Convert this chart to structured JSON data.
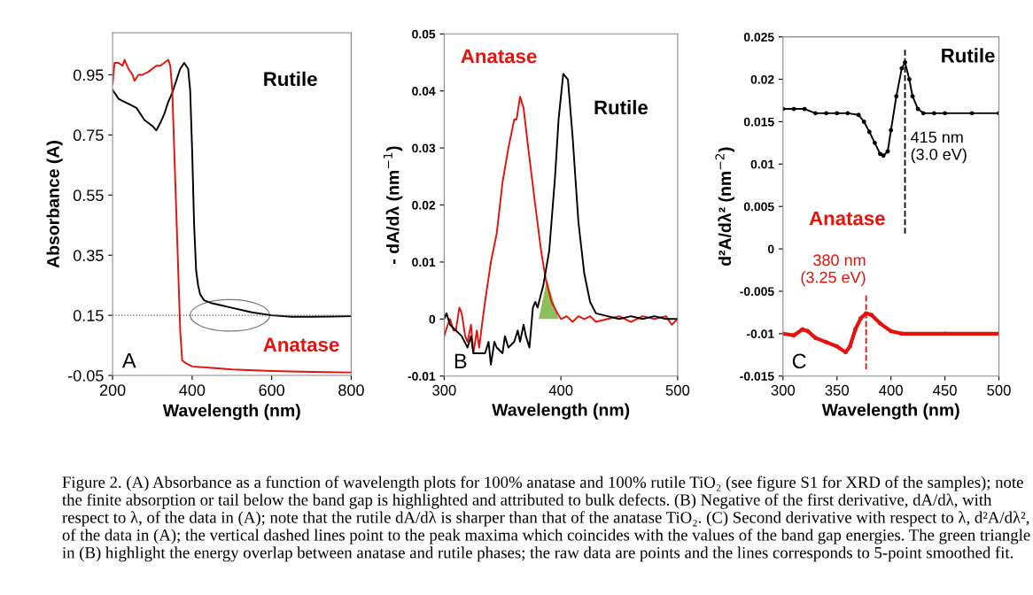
{
  "chart_data": [
    {
      "type": "line",
      "xlabel": "Wavelength (nm)",
      "ylabel": "Absorbance (A)",
      "xlim": [
        200,
        800
      ],
      "xticks": [
        200,
        400,
        600,
        800
      ],
      "ylim": [
        -0.05,
        1.09
      ],
      "yticks": [
        -0.05,
        0.15,
        0.35,
        0.55,
        0.75,
        0.95
      ],
      "grid": false,
      "legend": false,
      "series": [
        {
          "name": "Rutile",
          "color": "#000000",
          "x": [
            200,
            215,
            230,
            245,
            260,
            280,
            300,
            310,
            320,
            330,
            340,
            350,
            360,
            370,
            380,
            390,
            395,
            400,
            405,
            410,
            415,
            420,
            430,
            450,
            500,
            550,
            600,
            650,
            700,
            750,
            800
          ],
          "values": [
            0.9,
            0.87,
            0.86,
            0.85,
            0.84,
            0.8,
            0.78,
            0.765,
            0.79,
            0.82,
            0.86,
            0.89,
            0.93,
            0.97,
            0.99,
            0.97,
            0.9,
            0.7,
            0.45,
            0.3,
            0.25,
            0.22,
            0.2,
            0.19,
            0.175,
            0.16,
            0.15,
            0.145,
            0.145,
            0.146,
            0.147
          ]
        },
        {
          "name": "Anatase",
          "color": "#e8120c",
          "x": [
            200,
            205,
            215,
            225,
            230,
            240,
            250,
            255,
            265,
            275,
            290,
            310,
            320,
            330,
            340,
            345,
            350,
            355,
            360,
            365,
            370,
            375,
            380,
            385,
            400,
            450,
            500,
            600,
            700,
            800
          ],
          "values": [
            0.92,
            0.99,
            0.99,
            0.98,
            1.0,
            0.97,
            0.95,
            0.93,
            0.95,
            0.95,
            0.96,
            0.98,
            0.98,
            0.99,
            1.0,
            0.98,
            0.9,
            0.7,
            0.5,
            0.3,
            0.1,
            0.0,
            -0.005,
            -0.01,
            -0.02,
            -0.025,
            -0.03,
            -0.035,
            -0.038,
            -0.04
          ]
        }
      ],
      "ref_lines": [
        {
          "axis": "y",
          "value": 0.15,
          "color": "#555555",
          "line_style": "dotted"
        }
      ],
      "annotations": [
        "A",
        "Figure 2. (A) Absorbance as a function of wavelength plots for 100% anatase and 100% rutile TiO₂ (see figure S1 for XRD of the samples); note the finite absorption or tail below the band gap is highlighted and attributed to bulk defects. (B) Negative of the first derivative, dA/dλ, with respect to λ, of the data in (A); note that the rutile dA/dλ is sharper than that of the anatase TiO₂. (C) Second derivative with respect to λ, d²A/dλ², of the data in (A); the vertical dashed lines point to the peak maxima which coincides with the values of the band gap energies. The green triangle in (B) highlight the energy overlap between anatase and rutile phases; the raw data are points and the lines corresponds to 5-point smoothed fit."
      ]
    },
    {
      "type": "line",
      "xlabel": "Wavelength (nm)",
      "ylabel": "- dA/dλ (nm$^{−1}$)",
      "xlim": [
        300,
        500
      ],
      "xticks": [
        300,
        400,
        500
      ],
      "ylim": [
        -0.01,
        0.05
      ],
      "yticks": [
        -0.01,
        0,
        0.01,
        0.02,
        0.03,
        0.04,
        0.05
      ],
      "grid": false,
      "legend": false,
      "series": [
        {
          "name": "Anatase",
          "color": "#e8120c",
          "x": [
            300,
            303,
            305,
            308,
            310,
            313,
            315,
            318,
            320,
            323,
            325,
            328,
            330,
            333,
            335,
            340,
            345,
            350,
            355,
            360,
            362,
            365,
            368,
            372,
            378,
            383,
            387,
            392,
            397,
            400,
            405,
            410,
            415,
            420,
            425,
            430,
            440,
            450,
            460,
            470,
            480,
            490,
            495,
            500
          ],
          "values": [
            -0.003,
            -0.001,
            0.0,
            -0.002,
            -0.002,
            0.002,
            0.001,
            -0.003,
            -0.004,
            -0.001,
            -0.006,
            -0.002,
            -0.005,
            0.0,
            0.003,
            0.01,
            0.015,
            0.024,
            0.03,
            0.035,
            0.035,
            0.039,
            0.037,
            0.03,
            0.02,
            0.012,
            0.007,
            0.003,
            0.001,
            0.0,
            0.0005,
            -0.0005,
            0.0005,
            0.0,
            0.0005,
            -0.0005,
            0.0,
            0.0005,
            -0.0005,
            0.0005,
            0.0,
            0.0005,
            -0.001,
            0.0
          ]
        },
        {
          "name": "Rutile",
          "color": "#000000",
          "x": [
            300,
            302,
            305,
            310,
            315,
            320,
            323,
            325,
            330,
            335,
            338,
            340,
            343,
            345,
            350,
            352,
            355,
            360,
            363,
            365,
            368,
            370,
            373,
            376,
            378,
            380,
            385,
            390,
            395,
            398,
            402,
            406,
            410,
            415,
            420,
            425,
            430,
            440,
            450,
            460,
            470,
            480,
            490,
            500
          ],
          "values": [
            0.0,
            0.001,
            -0.001,
            -0.002,
            -0.003,
            -0.005,
            -0.003,
            -0.006,
            -0.006,
            -0.006,
            -0.004,
            -0.008,
            -0.004,
            -0.005,
            -0.006,
            -0.003,
            -0.005,
            -0.004,
            -0.002,
            -0.004,
            -0.001,
            -0.003,
            -0.005,
            0.002,
            0.003,
            0.002,
            0.006,
            0.012,
            0.025,
            0.035,
            0.043,
            0.042,
            0.032,
            0.017,
            0.008,
            0.003,
            0.001,
            0.0005,
            0.0,
            0.0005,
            0.0,
            0.0005,
            0.0,
            0.0
          ]
        },
        {
          "type": "area",
          "color": "#8dbf5a",
          "x": [
            381,
            388,
            398
          ],
          "values": [
            0,
            0.007,
            0
          ]
        }
      ],
      "annotations": [
        "B"
      ]
    },
    {
      "type": "line",
      "xlabel": "Wavelength (nm)",
      "ylabel": "d²A/dλ² (nm$^{−2}$)",
      "xlim": [
        300,
        500
      ],
      "xticks": [
        300,
        350,
        400,
        450,
        500
      ],
      "ylim": [
        -0.015,
        0.025
      ],
      "yticks": [
        -0.015,
        -0.01,
        -0.005,
        0,
        0.005,
        0.01,
        0.015,
        0.02,
        0.025
      ],
      "grid": false,
      "legend": false,
      "series": [
        {
          "name": "Rutile",
          "color": "#000000",
          "marker": "circle",
          "x": [
            300,
            310,
            320,
            330,
            340,
            350,
            360,
            370,
            375,
            380,
            385,
            390,
            393,
            397,
            400,
            405,
            410,
            413,
            417,
            420,
            425,
            430,
            440,
            450,
            475,
            500
          ],
          "values": [
            0.0165,
            0.0165,
            0.0165,
            0.016,
            0.016,
            0.016,
            0.016,
            0.0158,
            0.015,
            0.0138,
            0.0125,
            0.0112,
            0.011,
            0.0115,
            0.014,
            0.018,
            0.0213,
            0.022,
            0.02,
            0.018,
            0.0165,
            0.016,
            0.016,
            0.016,
            0.016,
            0.016
          ]
        },
        {
          "name": "Anatase",
          "color": "#e8120c",
          "marker": "circle",
          "x": [
            300,
            310,
            318,
            323,
            330,
            340,
            350,
            358,
            362,
            367,
            372,
            377,
            382,
            390,
            400,
            410,
            450,
            500
          ],
          "values": [
            -0.01,
            -0.0102,
            -0.0095,
            -0.0097,
            -0.0105,
            -0.011,
            -0.0115,
            -0.0122,
            -0.0115,
            -0.0095,
            -0.0082,
            -0.0076,
            -0.0078,
            -0.0088,
            -0.0097,
            -0.01,
            -0.01,
            -0.01
          ]
        }
      ],
      "ref_lines": [
        {
          "axis": "x",
          "value": 413,
          "label": "415 nm\n(3.0 eV)",
          "color": "#000000",
          "line_style": "dashed"
        },
        {
          "axis": "x",
          "value": 377,
          "label": "380 nm\n(3.25 eV)",
          "color": "#e8120c",
          "line_style": "dashed"
        }
      ],
      "annotations": [
        "C"
      ]
    }
  ]
}
